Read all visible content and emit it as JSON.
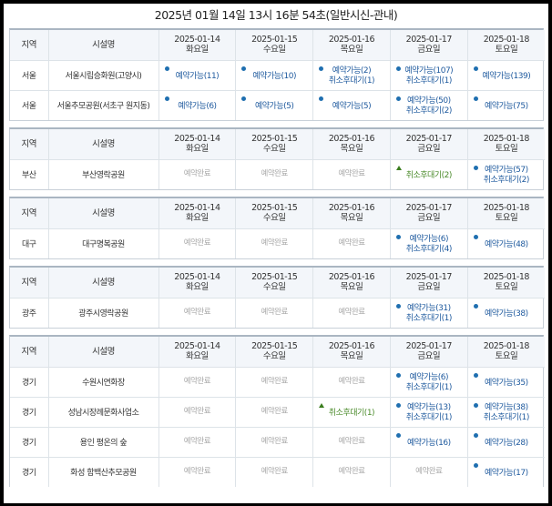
{
  "page_title": "2025년 01월 14일 13시 16분 54초(일반시신-관내)",
  "headers": {
    "region": "지역",
    "facility": "시설명",
    "days": [
      {
        "date": "2025-01-14",
        "weekday": "화요일"
      },
      {
        "date": "2025-01-15",
        "weekday": "수요일"
      },
      {
        "date": "2025-01-16",
        "weekday": "목요일"
      },
      {
        "date": "2025-01-17",
        "weekday": "금요일"
      },
      {
        "date": "2025-01-18",
        "weekday": "토요일"
      }
    ]
  },
  "colors": {
    "available": "#1f5a9e",
    "done": "#a9a9a9",
    "wait_only": "#4b8b2b",
    "dot": "#1f6fb0",
    "triangle": "#3a7d1e",
    "header_bg": "#f3f6fa"
  },
  "tables": [
    {
      "region_group": "서울",
      "rows": [
        {
          "region": "서울",
          "facility": "서울시립승화원(고양시)",
          "cells": [
            {
              "status": "avail",
              "lines": [
                "예약가능(11)"
              ]
            },
            {
              "status": "avail",
              "lines": [
                "예약가능(10)"
              ]
            },
            {
              "status": "avail",
              "lines": [
                "예약가능(2)",
                "취소후대기(1)"
              ]
            },
            {
              "status": "avail",
              "lines": [
                "예약가능(107)",
                "취소후대기(1)"
              ]
            },
            {
              "status": "avail",
              "lines": [
                "예약가능(139)"
              ]
            }
          ]
        },
        {
          "region": "서울",
          "facility": "서울추모공원(서초구 원지동)",
          "cells": [
            {
              "status": "avail",
              "lines": [
                "예약가능(6)"
              ]
            },
            {
              "status": "avail",
              "lines": [
                "예약가능(5)"
              ]
            },
            {
              "status": "avail",
              "lines": [
                "예약가능(5)"
              ]
            },
            {
              "status": "avail",
              "lines": [
                "예약가능(50)",
                "취소후대기(2)"
              ]
            },
            {
              "status": "avail",
              "lines": [
                "예약가능(75)"
              ]
            }
          ]
        }
      ]
    },
    {
      "region_group": "부산",
      "rows": [
        {
          "region": "부산",
          "facility": "부산영락공원",
          "cells": [
            {
              "status": "done",
              "lines": [
                "예약완료"
              ]
            },
            {
              "status": "done",
              "lines": [
                "예약완료"
              ]
            },
            {
              "status": "done",
              "lines": [
                "예약완료"
              ]
            },
            {
              "status": "wait",
              "lines": [
                "취소후대기(2)"
              ]
            },
            {
              "status": "avail",
              "lines": [
                "예약가능(57)",
                "취소후대기(2)"
              ]
            }
          ]
        }
      ]
    },
    {
      "region_group": "대구",
      "rows": [
        {
          "region": "대구",
          "facility": "대구명복공원",
          "cells": [
            {
              "status": "done",
              "lines": [
                "예약완료"
              ]
            },
            {
              "status": "done",
              "lines": [
                "예약완료"
              ]
            },
            {
              "status": "done",
              "lines": [
                "예약완료"
              ]
            },
            {
              "status": "avail",
              "lines": [
                "예약가능(6)",
                "취소후대기(4)"
              ]
            },
            {
              "status": "avail",
              "lines": [
                "예약가능(48)"
              ]
            }
          ]
        }
      ]
    },
    {
      "region_group": "광주",
      "rows": [
        {
          "region": "광주",
          "facility": "광주시영락공원",
          "cells": [
            {
              "status": "done",
              "lines": [
                "예약완료"
              ]
            },
            {
              "status": "done",
              "lines": [
                "예약완료"
              ]
            },
            {
              "status": "done",
              "lines": [
                "예약완료"
              ]
            },
            {
              "status": "avail",
              "lines": [
                "예약가능(31)",
                "취소후대기(1)"
              ]
            },
            {
              "status": "avail",
              "lines": [
                "예약가능(38)"
              ]
            }
          ]
        }
      ]
    },
    {
      "region_group": "경기",
      "rows": [
        {
          "region": "경기",
          "facility": "수원시연화장",
          "cells": [
            {
              "status": "done",
              "lines": [
                "예약완료"
              ]
            },
            {
              "status": "done",
              "lines": [
                "예약완료"
              ]
            },
            {
              "status": "done",
              "lines": [
                "예약완료"
              ]
            },
            {
              "status": "avail",
              "lines": [
                "예약가능(6)",
                "취소후대기(1)"
              ]
            },
            {
              "status": "avail",
              "lines": [
                "예약가능(35)"
              ]
            }
          ]
        },
        {
          "region": "경기",
          "facility": "성남시장례문화사업소",
          "cells": [
            {
              "status": "done",
              "lines": [
                "예약완료"
              ]
            },
            {
              "status": "done",
              "lines": [
                "예약완료"
              ]
            },
            {
              "status": "wait",
              "lines": [
                "취소후대기(1)"
              ]
            },
            {
              "status": "avail",
              "lines": [
                "예약가능(13)",
                "취소후대기(1)"
              ]
            },
            {
              "status": "avail",
              "lines": [
                "예약가능(38)",
                "취소후대기(1)"
              ]
            }
          ]
        },
        {
          "region": "경기",
          "facility": "용인 평온의 숲",
          "cells": [
            {
              "status": "done",
              "lines": [
                "예약완료"
              ]
            },
            {
              "status": "done",
              "lines": [
                "예약완료"
              ]
            },
            {
              "status": "done",
              "lines": [
                "예약완료"
              ]
            },
            {
              "status": "avail",
              "lines": [
                "예약가능(16)"
              ]
            },
            {
              "status": "avail",
              "lines": [
                "예약가능(28)"
              ]
            }
          ]
        },
        {
          "region": "경기",
          "facility": "화성 함백산추모공원",
          "cells": [
            {
              "status": "done",
              "lines": [
                "예약완료"
              ]
            },
            {
              "status": "done",
              "lines": [
                "예약완료"
              ]
            },
            {
              "status": "done",
              "lines": [
                "예약완료"
              ]
            },
            {
              "status": "done",
              "lines": [
                "예약완료"
              ]
            },
            {
              "status": "avail",
              "lines": [
                "예약가능(17)"
              ]
            }
          ]
        }
      ]
    }
  ]
}
